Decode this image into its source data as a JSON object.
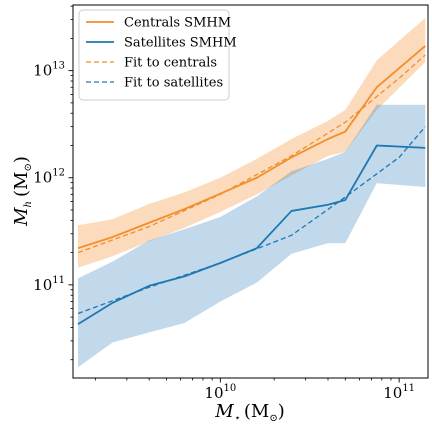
{
  "chart_data": {
    "type": "line",
    "xscale": "log",
    "yscale": "log",
    "xlim": [
      1500000000.0,
      145000000000.0
    ],
    "ylim": [
      13500000000.0,
      41000000000000.0
    ],
    "xlabel": {
      "main": "M",
      "sub": "⋆",
      "units": "(M",
      "units_sub": "⊙",
      "close": ")"
    },
    "ylabel": {
      "main": "M",
      "sub": "h",
      "units": "(M",
      "units_sub": "⊙",
      "close": ")"
    },
    "x_ticks": [
      {
        "value": 10000000000.0,
        "base": "10",
        "exp": "10"
      },
      {
        "value": 100000000000.0,
        "base": "10",
        "exp": "11"
      }
    ],
    "y_ticks": [
      {
        "value": 100000000000.0,
        "base": "10",
        "exp": "11"
      },
      {
        "value": 1000000000000.0,
        "base": "10",
        "exp": "12"
      },
      {
        "value": 10000000000000.0,
        "base": "10",
        "exp": "13"
      }
    ],
    "series": [
      {
        "name": "Centrals SMHM",
        "color": "#f28e2b",
        "style": "solid",
        "x": [
          1600000000.0,
          2500000000.0,
          4000000000.0,
          6300000000.0,
          10000000000.0,
          16000000000.0,
          25000000000.0,
          40000000000.0,
          50000000000.0,
          75000000000.0,
          140000000000.0
        ],
        "y": [
          220000000000.0,
          280000000000.0,
          380000000000.0,
          510000000000.0,
          710000000000.0,
          1000000000000.0,
          1550000000000.0,
          2300000000000.0,
          2700000000000.0,
          7000000000000.0,
          17000000000000.0
        ],
        "band_upper": [
          360000000000.0,
          410000000000.0,
          570000000000.0,
          730000000000.0,
          1000000000000.0,
          1500000000000.0,
          2300000000000.0,
          3400000000000.0,
          4300000000000.0,
          12500000000000.0,
          31000000000000.0
        ],
        "band_lower": [
          145000000000.0,
          185000000000.0,
          255000000000.0,
          340000000000.0,
          480000000000.0,
          700000000000.0,
          1050000000000.0,
          1600000000000.0,
          1750000000000.0,
          4300000000000.0,
          12000000000000.0
        ]
      },
      {
        "name": "Satellites SMHM",
        "color": "#1f77b4",
        "style": "solid",
        "x": [
          1600000000.0,
          2500000000.0,
          4000000000.0,
          6300000000.0,
          10000000000.0,
          16000000000.0,
          25000000000.0,
          40000000000.0,
          50000000000.0,
          75000000000.0,
          140000000000.0
        ],
        "y": [
          43000000000.0,
          68000000000.0,
          98000000000.0,
          120000000000.0,
          160000000000.0,
          220000000000.0,
          490000000000.0,
          560000000000.0,
          620000000000.0,
          2000000000000.0,
          1900000000000.0
        ],
        "band_upper": [
          115000000000.0,
          165000000000.0,
          260000000000.0,
          330000000000.0,
          430000000000.0,
          670000000000.0,
          1150000000000.0,
          1500000000000.0,
          1750000000000.0,
          4800000000000.0,
          4800000000000.0
        ],
        "band_lower": [
          17000000000.0,
          29000000000.0,
          36000000000.0,
          44000000000.0,
          70000000000.0,
          105000000000.0,
          195000000000.0,
          245000000000.0,
          245000000000.0,
          890000000000.0,
          820000000000.0
        ]
      },
      {
        "name": "Fit to centrals",
        "color": "#f28e2b",
        "style": "dashed",
        "x": [
          1600000000.0,
          4000000000.0,
          10000000000.0,
          25000000000.0,
          50000000000.0,
          100000000000.0,
          140000000000.0
        ],
        "y": [
          200000000000.0,
          350000000000.0,
          700000000000.0,
          1600000000000.0,
          3300000000000.0,
          8500000000000.0,
          14000000000000.0
        ]
      },
      {
        "name": "Fit to satellites",
        "color": "#1f77b4",
        "style": "dashed",
        "x": [
          1600000000.0,
          4000000000.0,
          10000000000.0,
          25000000000.0,
          50000000000.0,
          100000000000.0,
          140000000000.0
        ],
        "y": [
          54000000000.0,
          95000000000.0,
          160000000000.0,
          290000000000.0,
          660000000000.0,
          1550000000000.0,
          3000000000000.0
        ]
      }
    ],
    "legend": {
      "placement": "top-left",
      "entries": [
        "Centrals SMHM",
        "Satellites SMHM",
        "Fit to centrals",
        "Fit to satellites"
      ]
    },
    "grid": false
  }
}
